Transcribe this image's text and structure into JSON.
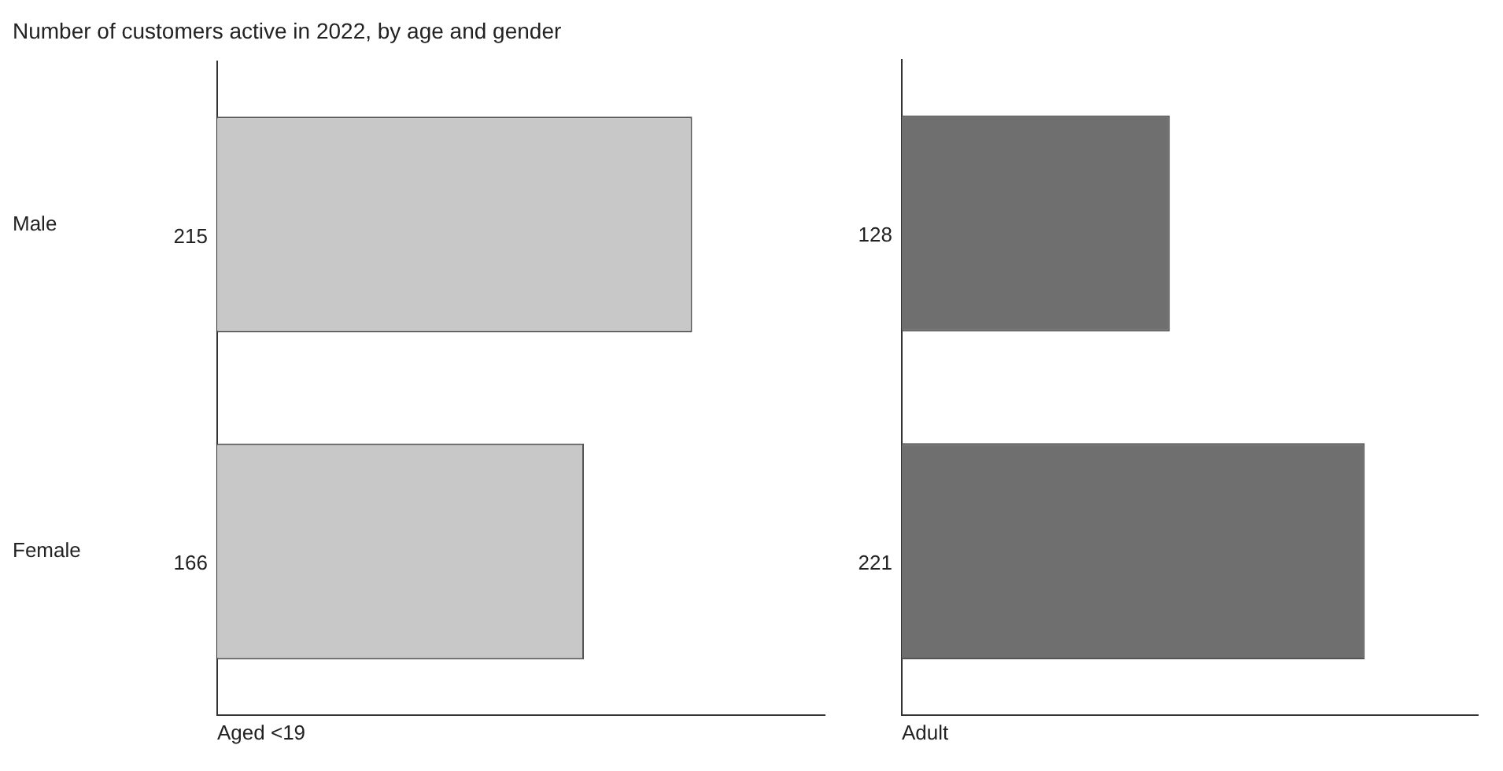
{
  "chart_data": [
    {
      "type": "bar",
      "orientation": "horizontal",
      "title": "Number of customers active in 2022, by age and gender",
      "xlabel": "Aged <19",
      "categories": [
        "Male",
        "Female"
      ],
      "values": [
        215,
        166
      ],
      "color": "#c8c8c8",
      "xlim": [
        0,
        275
      ],
      "data_labels": true,
      "tick_labels": "y",
      "grid": false
    },
    {
      "type": "bar",
      "orientation": "horizontal",
      "xlabel": "Adult",
      "categories": [
        null,
        null
      ],
      "values": [
        128,
        221
      ],
      "color": "#6f6f6f",
      "xlim": [
        0,
        275
      ],
      "data_labels": true,
      "tick_labels": false,
      "grid": false
    }
  ]
}
